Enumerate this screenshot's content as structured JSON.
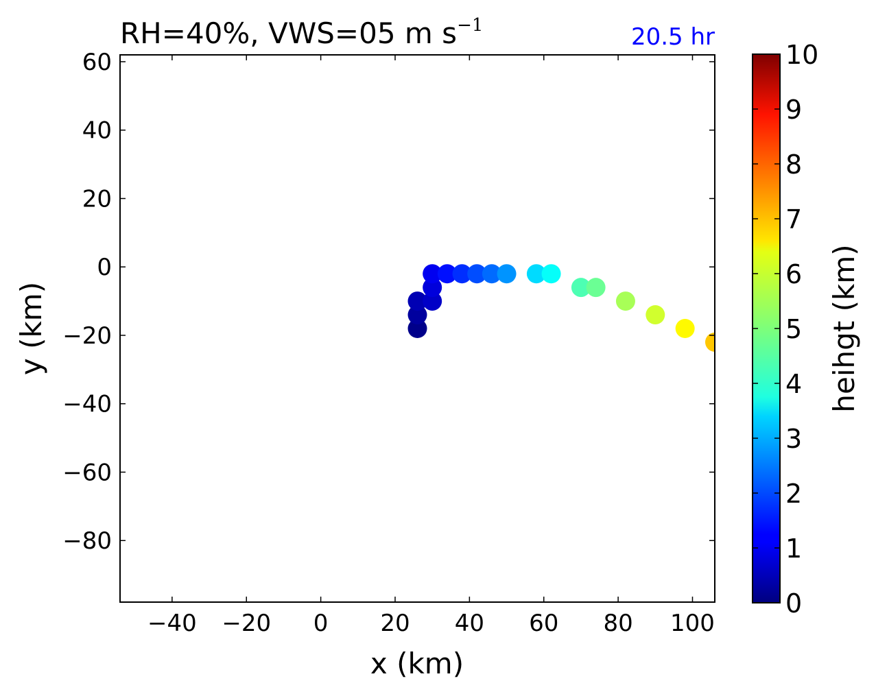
{
  "chart_data": {
    "type": "scatter",
    "title": "RH=40%, VWS=05 m s",
    "title_superscript": "−1",
    "time_label": "20.5 hr",
    "time_label_color": "#0000ff",
    "xlabel": "x (km)",
    "ylabel": "y (km)",
    "xlim": [
      -54,
      106
    ],
    "ylim": [
      -98,
      62
    ],
    "xticks": [
      -40,
      -20,
      0,
      20,
      40,
      60,
      80,
      100
    ],
    "xtick_labels": [
      "−40",
      "−20",
      "0",
      "20",
      "40",
      "60",
      "80",
      "100"
    ],
    "yticks": [
      60,
      40,
      20,
      0,
      -20,
      -40,
      -60,
      -80
    ],
    "ytick_labels": [
      "60",
      "40",
      "20",
      "0",
      "−20",
      "−40",
      "−60",
      "−80"
    ],
    "grid": false,
    "colormap": "jet",
    "colorbar": {
      "label": "heihgt (km)",
      "range": [
        0,
        10
      ],
      "ticks": [
        0,
        1,
        2,
        3,
        4,
        5,
        6,
        7,
        8,
        9,
        10
      ],
      "tick_labels": [
        "0",
        "1",
        "2",
        "3",
        "4",
        "5",
        "6",
        "7",
        "8",
        "9",
        "10"
      ]
    },
    "points": [
      {
        "x": 26,
        "y": -18,
        "height": 0.1
      },
      {
        "x": 26,
        "y": -14,
        "height": 0.3
      },
      {
        "x": 26,
        "y": -10,
        "height": 0.5
      },
      {
        "x": 30,
        "y": -10,
        "height": 0.7
      },
      {
        "x": 30,
        "y": -6,
        "height": 0.9
      },
      {
        "x": 30,
        "y": -2,
        "height": 1.1
      },
      {
        "x": 34,
        "y": -2,
        "height": 1.4
      },
      {
        "x": 38,
        "y": -2,
        "height": 1.7
      },
      {
        "x": 42,
        "y": -2,
        "height": 2.0
      },
      {
        "x": 46,
        "y": -2,
        "height": 2.3
      },
      {
        "x": 50,
        "y": -2,
        "height": 2.7
      },
      {
        "x": 58,
        "y": -2,
        "height": 3.4
      },
      {
        "x": 62,
        "y": -2,
        "height": 3.8
      },
      {
        "x": 70,
        "y": -6,
        "height": 4.5
      },
      {
        "x": 74,
        "y": -6,
        "height": 4.8
      },
      {
        "x": 82,
        "y": -10,
        "height": 5.4
      },
      {
        "x": 90,
        "y": -14,
        "height": 5.8
      },
      {
        "x": 98,
        "y": -18,
        "height": 6.3
      },
      {
        "x": 106,
        "y": -22,
        "height": 6.8
      }
    ]
  }
}
